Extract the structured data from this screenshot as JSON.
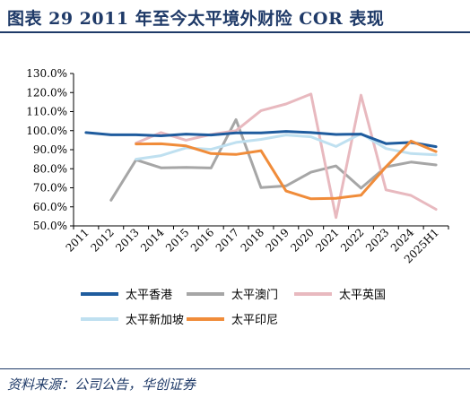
{
  "header": {
    "title": "图表 29   2011 年至今太平境外财险 COR 表现"
  },
  "footer": {
    "source": "资料来源：公司公告，华创证券"
  },
  "chart_data": {
    "type": "line",
    "categories": [
      "2011",
      "2012",
      "2013",
      "2014",
      "2015",
      "2016",
      "2017",
      "2018",
      "2019",
      "2020",
      "2021",
      "2022",
      "2023",
      "2024",
      "2025H1"
    ],
    "y_ticks": [
      "50.0%",
      "60.0%",
      "70.0%",
      "80.0%",
      "90.0%",
      "100.0%",
      "110.0%",
      "120.0%",
      "130.0%"
    ],
    "ylim": [
      50,
      130
    ],
    "y_unit": "%",
    "grid": false,
    "legend_position": "bottom",
    "series": [
      {
        "name": "太平香港",
        "color": "#1f5c9e",
        "values": [
          99.0,
          97.8,
          97.8,
          97.3,
          98.2,
          97.7,
          98.8,
          98.8,
          99.6,
          99.0,
          98.0,
          98.2,
          93.2,
          93.8,
          91.6
        ]
      },
      {
        "name": "太平澳门",
        "color": "#a6a6a6",
        "values": [
          null,
          63.5,
          84.7,
          80.5,
          80.7,
          80.4,
          105.8,
          70.1,
          71.0,
          78.2,
          81.5,
          69.8,
          81.0,
          83.5,
          82.0
        ]
      },
      {
        "name": "太平英国",
        "color": "#e8b9bf",
        "values": [
          null,
          null,
          93.5,
          99.0,
          95.0,
          98.0,
          100.0,
          110.5,
          114.0,
          119.2,
          54.4,
          118.6,
          68.9,
          66.0,
          58.7
        ]
      },
      {
        "name": "太平新加坡",
        "color": "#bfe0f0",
        "values": [
          null,
          null,
          85.0,
          86.9,
          91.0,
          90.2,
          93.8,
          95.4,
          97.7,
          96.8,
          91.7,
          98.4,
          90.6,
          88.0,
          87.3
        ]
      },
      {
        "name": "太平印尼",
        "color": "#f08c3a",
        "values": [
          null,
          null,
          93.0,
          93.1,
          92.0,
          88.0,
          87.5,
          89.5,
          68.3,
          64.2,
          64.5,
          66.1,
          81.0,
          94.5,
          89.0
        ]
      }
    ]
  }
}
